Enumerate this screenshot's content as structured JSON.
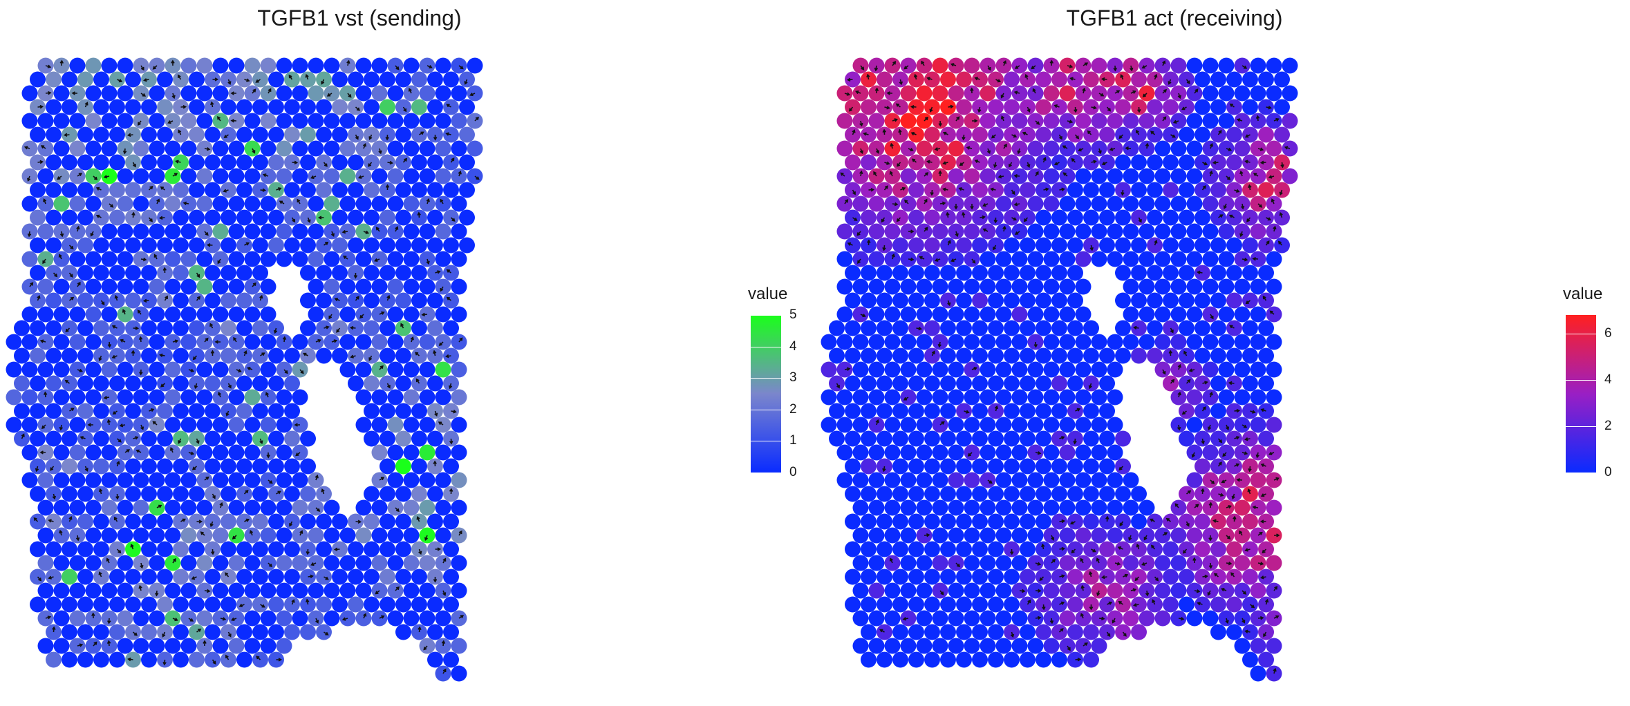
{
  "chart_data": [
    {
      "type": "heatmap",
      "title": "TGFB1 vst (sending)",
      "legend": {
        "title": "value",
        "position": "right",
        "ticks": [
          0,
          1,
          2,
          3,
          4,
          5
        ],
        "range": [
          0,
          5
        ]
      },
      "colors": {
        "low": "#0a2bff",
        "mid": "#7b86cc",
        "high": "#1aff1a"
      },
      "grid": false
    },
    {
      "type": "heatmap",
      "title": "TGFB1 act (receiving)",
      "legend": {
        "title": "value",
        "position": "right",
        "ticks": [
          0,
          2,
          4,
          6
        ],
        "range": [
          0,
          6.8
        ]
      },
      "colors": {
        "low": "#0a2bff",
        "mid": "#9a1fc4",
        "high": "#ff2020"
      },
      "grid": false
    }
  ]
}
